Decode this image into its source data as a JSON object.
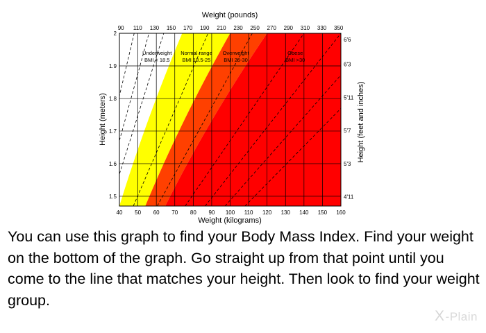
{
  "chart_data": {
    "type": "area",
    "xlabel": "Weight (kilograms)",
    "x2label": "Weight (pounds)",
    "ylabel": "Height (meters)",
    "y2label": "Height (feet and inches)",
    "xlim": [
      40,
      160
    ],
    "ylim": [
      1.47,
      2.0
    ],
    "x_ticks": [
      "40",
      "50",
      "60",
      "70",
      "80",
      "90",
      "100",
      "110",
      "120",
      "130",
      "140",
      "150",
      "160"
    ],
    "x2_ticks": [
      "90",
      "110",
      "130",
      "150",
      "170",
      "190",
      "210",
      "230",
      "250",
      "270",
      "290",
      "310",
      "330",
      "350"
    ],
    "y_ticks": [
      "1.5",
      "1.6",
      "1.7",
      "1.8",
      "1.9",
      "2"
    ],
    "y2_ticks": [
      "4'11",
      "5'3",
      "5'7",
      "5'11",
      "6'3",
      "6'6"
    ],
    "grid": true,
    "zones": [
      {
        "name": "Underweight",
        "range": "BMI < 18.5",
        "color": "#ffffff"
      },
      {
        "name": "Normal range",
        "range": "BMI 18.5-25",
        "color": "#ffff00"
      },
      {
        "name": "Overweight",
        "range": "BMI 25-30",
        "color": "#ff4000"
      },
      {
        "name": "Obese",
        "range": "BMI >30",
        "color": "#ff0000"
      }
    ],
    "bmi_boundaries": [
      18.5,
      25,
      30
    ],
    "dashed_bmi_lines": [
      12,
      14,
      16,
      22,
      28,
      35,
      40,
      45,
      50
    ]
  },
  "caption": "You can use this graph to find your Body Mass Index. Find your weight on the bottom of the graph. Go straight up from that point until you come to the line that matches your height. Then look to find your weight group.",
  "brand": {
    "mark": "X",
    "name": "-Plain"
  }
}
